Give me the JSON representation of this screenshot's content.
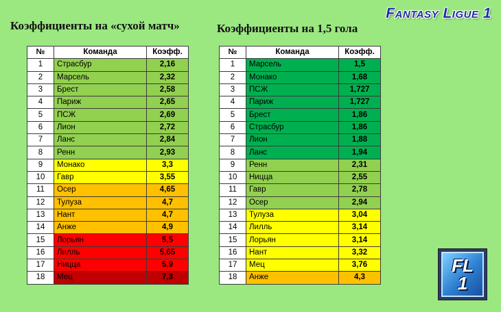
{
  "brand": "Fantasy Ligue 1",
  "left_table": {
    "title": "Коэффициенты на «сухой матч»",
    "headers": [
      "№",
      "Команда",
      "Коэфф."
    ],
    "rows": [
      {
        "n": "1",
        "team": "Страсбур",
        "value": "2,16",
        "color": "#92d050"
      },
      {
        "n": "2",
        "team": "Марсель",
        "value": "2,32",
        "color": "#92d050"
      },
      {
        "n": "3",
        "team": "Брест",
        "value": "2,58",
        "color": "#92d050"
      },
      {
        "n": "4",
        "team": "Париж",
        "value": "2,65",
        "color": "#92d050"
      },
      {
        "n": "5",
        "team": "ПСЖ",
        "value": "2,69",
        "color": "#92d050"
      },
      {
        "n": "6",
        "team": "Лион",
        "value": "2,72",
        "color": "#92d050"
      },
      {
        "n": "7",
        "team": "Ланс",
        "value": "2,84",
        "color": "#92d050"
      },
      {
        "n": "8",
        "team": "Ренн",
        "value": "2,93",
        "color": "#92d050"
      },
      {
        "n": "9",
        "team": "Монако",
        "value": "3,3",
        "color": "#ffff00"
      },
      {
        "n": "10",
        "team": "Гавр",
        "value": "3,55",
        "color": "#ffff00"
      },
      {
        "n": "11",
        "team": "Осер",
        "value": "4,65",
        "color": "#ffc000"
      },
      {
        "n": "12",
        "team": "Тулуза",
        "value": "4,7",
        "color": "#ffc000"
      },
      {
        "n": "13",
        "team": "Нант",
        "value": "4,7",
        "color": "#ffc000"
      },
      {
        "n": "14",
        "team": "Анже",
        "value": "4,9",
        "color": "#ffc000"
      },
      {
        "n": "15",
        "team": "Лорьян",
        "value": "5,5",
        "color": "#ff0000"
      },
      {
        "n": "16",
        "team": "Лилль",
        "value": "5,65",
        "color": "#ff0000"
      },
      {
        "n": "17",
        "team": "Ницца",
        "value": "5,9",
        "color": "#ff0000"
      },
      {
        "n": "18",
        "team": "Мец",
        "value": "7,3",
        "color": "#c00000"
      }
    ]
  },
  "right_table": {
    "title": "Коэффициенты на 1,5 гола",
    "headers": [
      "№",
      "Команда",
      "Коэфф."
    ],
    "rows": [
      {
        "n": "1",
        "team": "Марсель",
        "value": "1,5",
        "color": "#00b050"
      },
      {
        "n": "2",
        "team": "Монако",
        "value": "1,68",
        "color": "#00b050"
      },
      {
        "n": "3",
        "team": "ПСЖ",
        "value": "1,727",
        "color": "#00b050"
      },
      {
        "n": "4",
        "team": "Париж",
        "value": "1,727",
        "color": "#00b050"
      },
      {
        "n": "5",
        "team": "Брест",
        "value": "1,86",
        "color": "#00b050"
      },
      {
        "n": "6",
        "team": "Страсбур",
        "value": "1,86",
        "color": "#00b050"
      },
      {
        "n": "7",
        "team": "Лион",
        "value": "1,88",
        "color": "#00b050"
      },
      {
        "n": "8",
        "team": "Ланс",
        "value": "1,94",
        "color": "#00b050"
      },
      {
        "n": "9",
        "team": "Ренн",
        "value": "2,31",
        "color": "#92d050"
      },
      {
        "n": "10",
        "team": "Ницца",
        "value": "2,55",
        "color": "#92d050"
      },
      {
        "n": "11",
        "team": "Гавр",
        "value": "2,78",
        "color": "#92d050"
      },
      {
        "n": "12",
        "team": "Осер",
        "value": "2,94",
        "color": "#92d050"
      },
      {
        "n": "13",
        "team": "Тулуза",
        "value": "3,04",
        "color": "#ffff00"
      },
      {
        "n": "14",
        "team": "Лилль",
        "value": "3,14",
        "color": "#ffff00"
      },
      {
        "n": "15",
        "team": "Лорьян",
        "value": "3,14",
        "color": "#ffff00"
      },
      {
        "n": "16",
        "team": "Нант",
        "value": "3,32",
        "color": "#ffff00"
      },
      {
        "n": "17",
        "team": "Мец",
        "value": "3,76",
        "color": "#ffff00"
      },
      {
        "n": "18",
        "team": "Анже",
        "value": "4,3",
        "color": "#ffc000"
      }
    ]
  },
  "logo": {
    "line1": "FL",
    "line2": "1"
  }
}
